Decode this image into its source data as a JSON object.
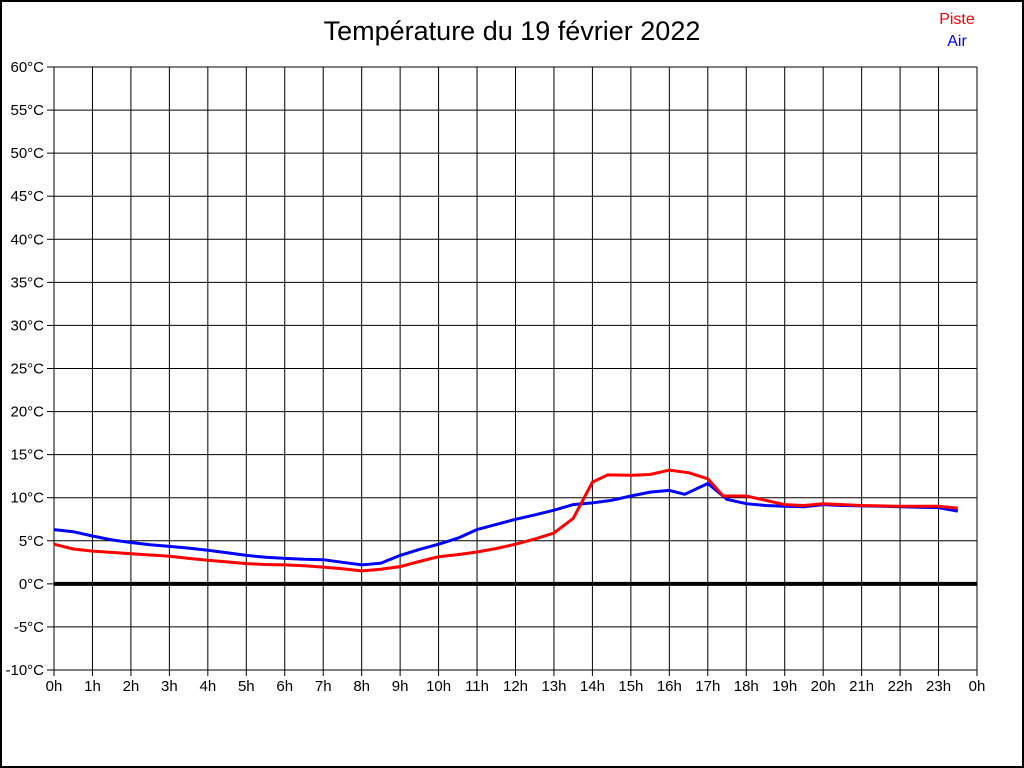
{
  "header": {
    "title": "Température du 19 février 2022"
  },
  "legend": {
    "items": [
      {
        "label": "Piste",
        "color": "#ff0000"
      },
      {
        "label": "Air",
        "color": "#0000ff"
      }
    ]
  },
  "chart_data": {
    "type": "line",
    "title": "Température du 19 février 2022",
    "xlabel": "",
    "ylabel": "",
    "xlim": [
      0,
      24
    ],
    "ylim": [
      -10,
      60
    ],
    "grid": true,
    "zero_line_thick": true,
    "legend_position": "top-right",
    "x_ticks": [
      0,
      1,
      2,
      3,
      4,
      5,
      6,
      7,
      8,
      9,
      10,
      11,
      12,
      13,
      14,
      15,
      16,
      17,
      18,
      19,
      20,
      21,
      22,
      23,
      24
    ],
    "x_tick_labels": [
      "0h",
      "1h",
      "2h",
      "3h",
      "4h",
      "5h",
      "6h",
      "7h",
      "8h",
      "9h",
      "10h",
      "11h",
      "12h",
      "13h",
      "14h",
      "15h",
      "16h",
      "17h",
      "18h",
      "19h",
      "20h",
      "21h",
      "22h",
      "23h",
      "0h"
    ],
    "y_ticks": [
      60,
      55,
      50,
      45,
      40,
      35,
      30,
      25,
      20,
      15,
      10,
      5,
      0,
      -5,
      -10
    ],
    "y_tick_labels": [
      "60°C",
      "55°C",
      "50°C",
      "45°C",
      "40°C",
      "35°C",
      "30°C",
      "25°C",
      "20°C",
      "15°C",
      "10°C",
      "5°C",
      "0°C",
      "-5°C",
      "-10°C"
    ],
    "series": [
      {
        "name": "Air",
        "color": "#0000ff",
        "points": [
          [
            0,
            6.3
          ],
          [
            0.5,
            6.05
          ],
          [
            1,
            5.55
          ],
          [
            1.5,
            5.1
          ],
          [
            2,
            4.8
          ],
          [
            2.5,
            4.55
          ],
          [
            3,
            4.35
          ],
          [
            3.5,
            4.15
          ],
          [
            4,
            3.9
          ],
          [
            4.5,
            3.6
          ],
          [
            5,
            3.3
          ],
          [
            5.5,
            3.1
          ],
          [
            6,
            2.95
          ],
          [
            6.5,
            2.85
          ],
          [
            7,
            2.8
          ],
          [
            7.5,
            2.5
          ],
          [
            8,
            2.2
          ],
          [
            8.5,
            2.4
          ],
          [
            9,
            3.3
          ],
          [
            9.5,
            4.0
          ],
          [
            10,
            4.6
          ],
          [
            10.5,
            5.3
          ],
          [
            11,
            6.3
          ],
          [
            11.5,
            6.9
          ],
          [
            12,
            7.5
          ],
          [
            12.5,
            8.0
          ],
          [
            13,
            8.55
          ],
          [
            13.5,
            9.2
          ],
          [
            14,
            9.4
          ],
          [
            14.5,
            9.7
          ],
          [
            15,
            10.2
          ],
          [
            15.5,
            10.65
          ],
          [
            16,
            10.85
          ],
          [
            16.4,
            10.4
          ],
          [
            17,
            11.65
          ],
          [
            17.5,
            9.8
          ],
          [
            18,
            9.3
          ],
          [
            18.5,
            9.1
          ],
          [
            19,
            9.0
          ],
          [
            19.5,
            8.95
          ],
          [
            20,
            9.2
          ],
          [
            20.5,
            9.1
          ],
          [
            21,
            9.05
          ],
          [
            21.5,
            9.0
          ],
          [
            22,
            8.95
          ],
          [
            22.5,
            8.9
          ],
          [
            23,
            8.85
          ],
          [
            23.5,
            8.45
          ]
        ]
      },
      {
        "name": "Piste",
        "color": "#ff0000",
        "points": [
          [
            0,
            4.6
          ],
          [
            0.5,
            4.05
          ],
          [
            1,
            3.8
          ],
          [
            1.5,
            3.65
          ],
          [
            2,
            3.5
          ],
          [
            2.5,
            3.35
          ],
          [
            3,
            3.2
          ],
          [
            3.5,
            2.95
          ],
          [
            4,
            2.75
          ],
          [
            4.5,
            2.55
          ],
          [
            5,
            2.35
          ],
          [
            5.5,
            2.25
          ],
          [
            6,
            2.2
          ],
          [
            6.5,
            2.1
          ],
          [
            7,
            1.95
          ],
          [
            7.5,
            1.75
          ],
          [
            8,
            1.5
          ],
          [
            8.5,
            1.7
          ],
          [
            9,
            2.0
          ],
          [
            9.5,
            2.6
          ],
          [
            10,
            3.15
          ],
          [
            10.5,
            3.4
          ],
          [
            11,
            3.7
          ],
          [
            11.5,
            4.1
          ],
          [
            12,
            4.6
          ],
          [
            12.5,
            5.2
          ],
          [
            13,
            5.9
          ],
          [
            13.5,
            7.6
          ],
          [
            14,
            11.8
          ],
          [
            14.4,
            12.65
          ],
          [
            15,
            12.6
          ],
          [
            15.5,
            12.7
          ],
          [
            16,
            13.2
          ],
          [
            16.5,
            12.9
          ],
          [
            17,
            12.2
          ],
          [
            17.4,
            10.2
          ],
          [
            18,
            10.2
          ],
          [
            18.5,
            9.7
          ],
          [
            19,
            9.2
          ],
          [
            19.5,
            9.1
          ],
          [
            20,
            9.3
          ],
          [
            20.5,
            9.2
          ],
          [
            21,
            9.1
          ],
          [
            21.5,
            9.05
          ],
          [
            22,
            9.0
          ],
          [
            22.5,
            9.0
          ],
          [
            23,
            9.0
          ],
          [
            23.5,
            8.8
          ]
        ]
      }
    ]
  }
}
